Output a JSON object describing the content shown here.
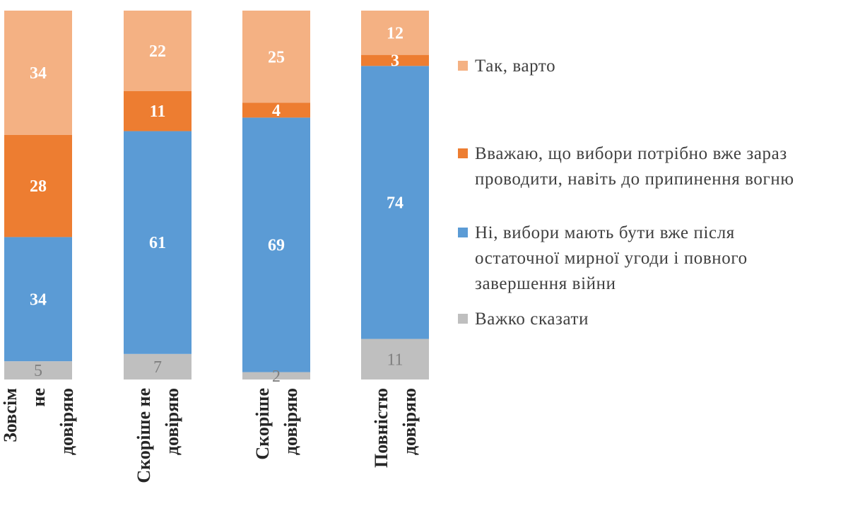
{
  "chart_data": {
    "type": "bar",
    "stacked": true,
    "orientation": "vertical",
    "percent_scale": true,
    "categories": [
      "Зовсім не довіряю",
      "Скоріше не довіряю",
      "Скоріше довіряю",
      "Повністю довіряю"
    ],
    "category_label_lines": [
      [
        "Зовсім",
        "не",
        "довіряю"
      ],
      [
        "Скоріше не",
        "довіряю"
      ],
      [
        "Скоріше",
        "довіряю"
      ],
      [
        "Повністю",
        "довіряю"
      ]
    ],
    "series": [
      {
        "name": "Важко сказати",
        "color": "#bfbfbf",
        "values": [
          5,
          7,
          2,
          11
        ]
      },
      {
        "name": "Ні, вибори мають бути вже після остаточної мирної угоди і повного завершення війни",
        "color": "#5b9bd5",
        "values": [
          34,
          61,
          69,
          74
        ]
      },
      {
        "name": "Вважаю, що вибори потрібно вже зараз проводити, навіть до припинення вогню",
        "color": "#ed7d31",
        "values": [
          28,
          11,
          4,
          3
        ]
      },
      {
        "name": "Так, варто",
        "color": "#f4b183",
        "values": [
          34,
          22,
          25,
          12
        ]
      }
    ],
    "legend": {
      "position": "right",
      "items": [
        {
          "lines": [
            "Так, варто"
          ],
          "color": "#f4b183"
        },
        {
          "lines": [
            "Вважаю, що вибори потрібно вже зараз",
            "проводити, навіть до припинення вогню"
          ],
          "color": "#ed7d31"
        },
        {
          "lines": [
            "Ні, вибори мають бути вже після",
            "остаточної мирної угоди і повного",
            "завершення війни"
          ],
          "color": "#5b9bd5"
        },
        {
          "lines": [
            "Важко сказати"
          ],
          "color": "#bfbfbf"
        }
      ]
    }
  }
}
